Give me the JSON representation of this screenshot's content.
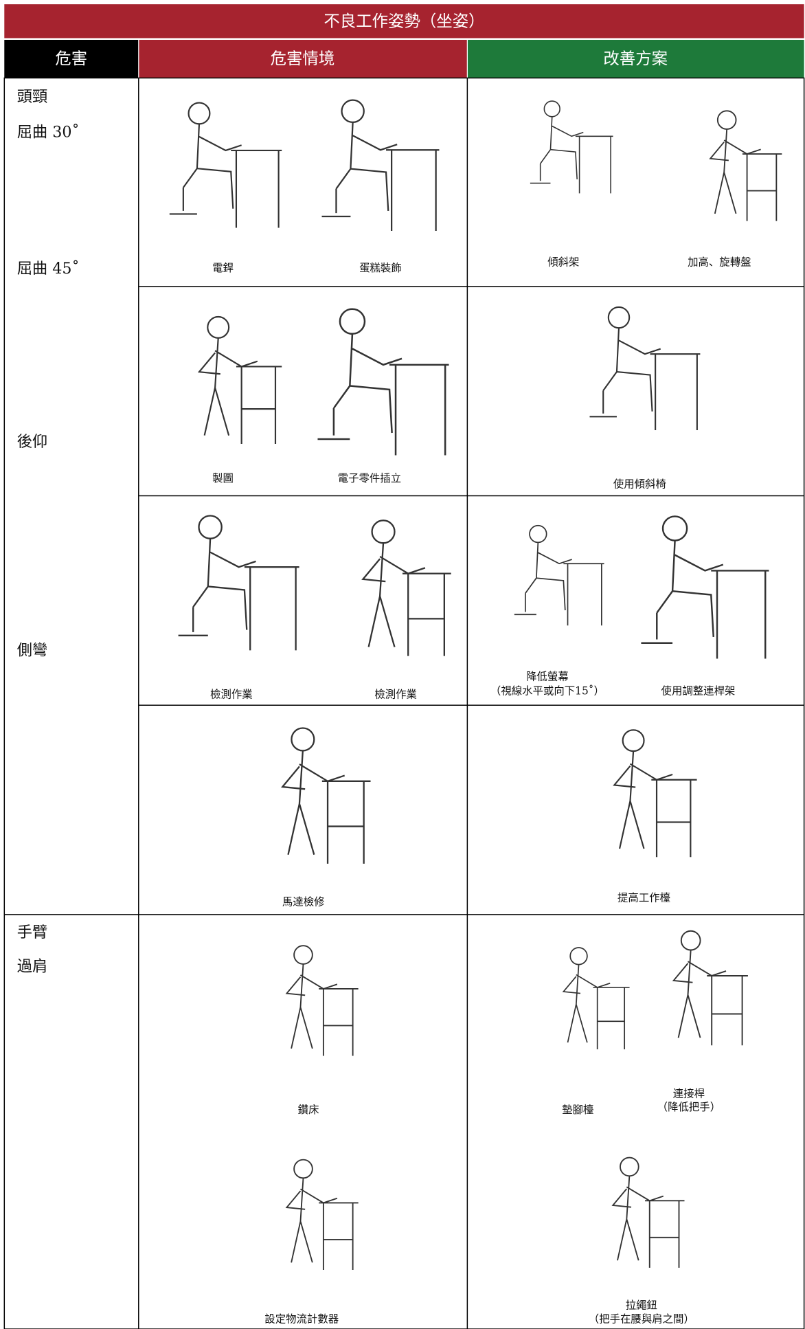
{
  "header": {
    "title": "不良工作姿勢（坐姿）"
  },
  "table": {
    "columns": [
      "危害",
      "危害情境",
      "改善方案"
    ],
    "hazards": [
      "頭頸",
      "屈曲 30˚",
      "屈曲 45˚",
      "後仰",
      "側彎",
      "手臂",
      "過肩"
    ],
    "rows": [
      {
        "situations": [
          "電銲",
          "蛋糕裝飾"
        ],
        "improvements": [
          [
            "傾斜架"
          ],
          [
            "加高、旋轉盤"
          ]
        ]
      },
      {
        "situations": [
          "製圖",
          "電子零件插立"
        ],
        "improvements": [
          [
            "使用傾斜椅"
          ]
        ]
      },
      {
        "situations": [
          "檢測作業",
          "檢測作業"
        ],
        "improvements": [
          [
            "降低螢幕",
            "（視線水平或向下15˚）"
          ],
          [
            "使用調整連桿架"
          ]
        ]
      },
      {
        "situations": [
          "馬達檢修"
        ],
        "improvements": [
          [
            "提高工作檯"
          ]
        ]
      },
      {
        "situations": [
          "鑽床",
          "設定物流計數器"
        ],
        "improvements": [
          [
            "墊腳檯"
          ],
          [
            "連接桿",
            "（降低把手）"
          ],
          [
            "拉繩鈕",
            "（把手在腰與肩之間）"
          ]
        ]
      }
    ]
  }
}
